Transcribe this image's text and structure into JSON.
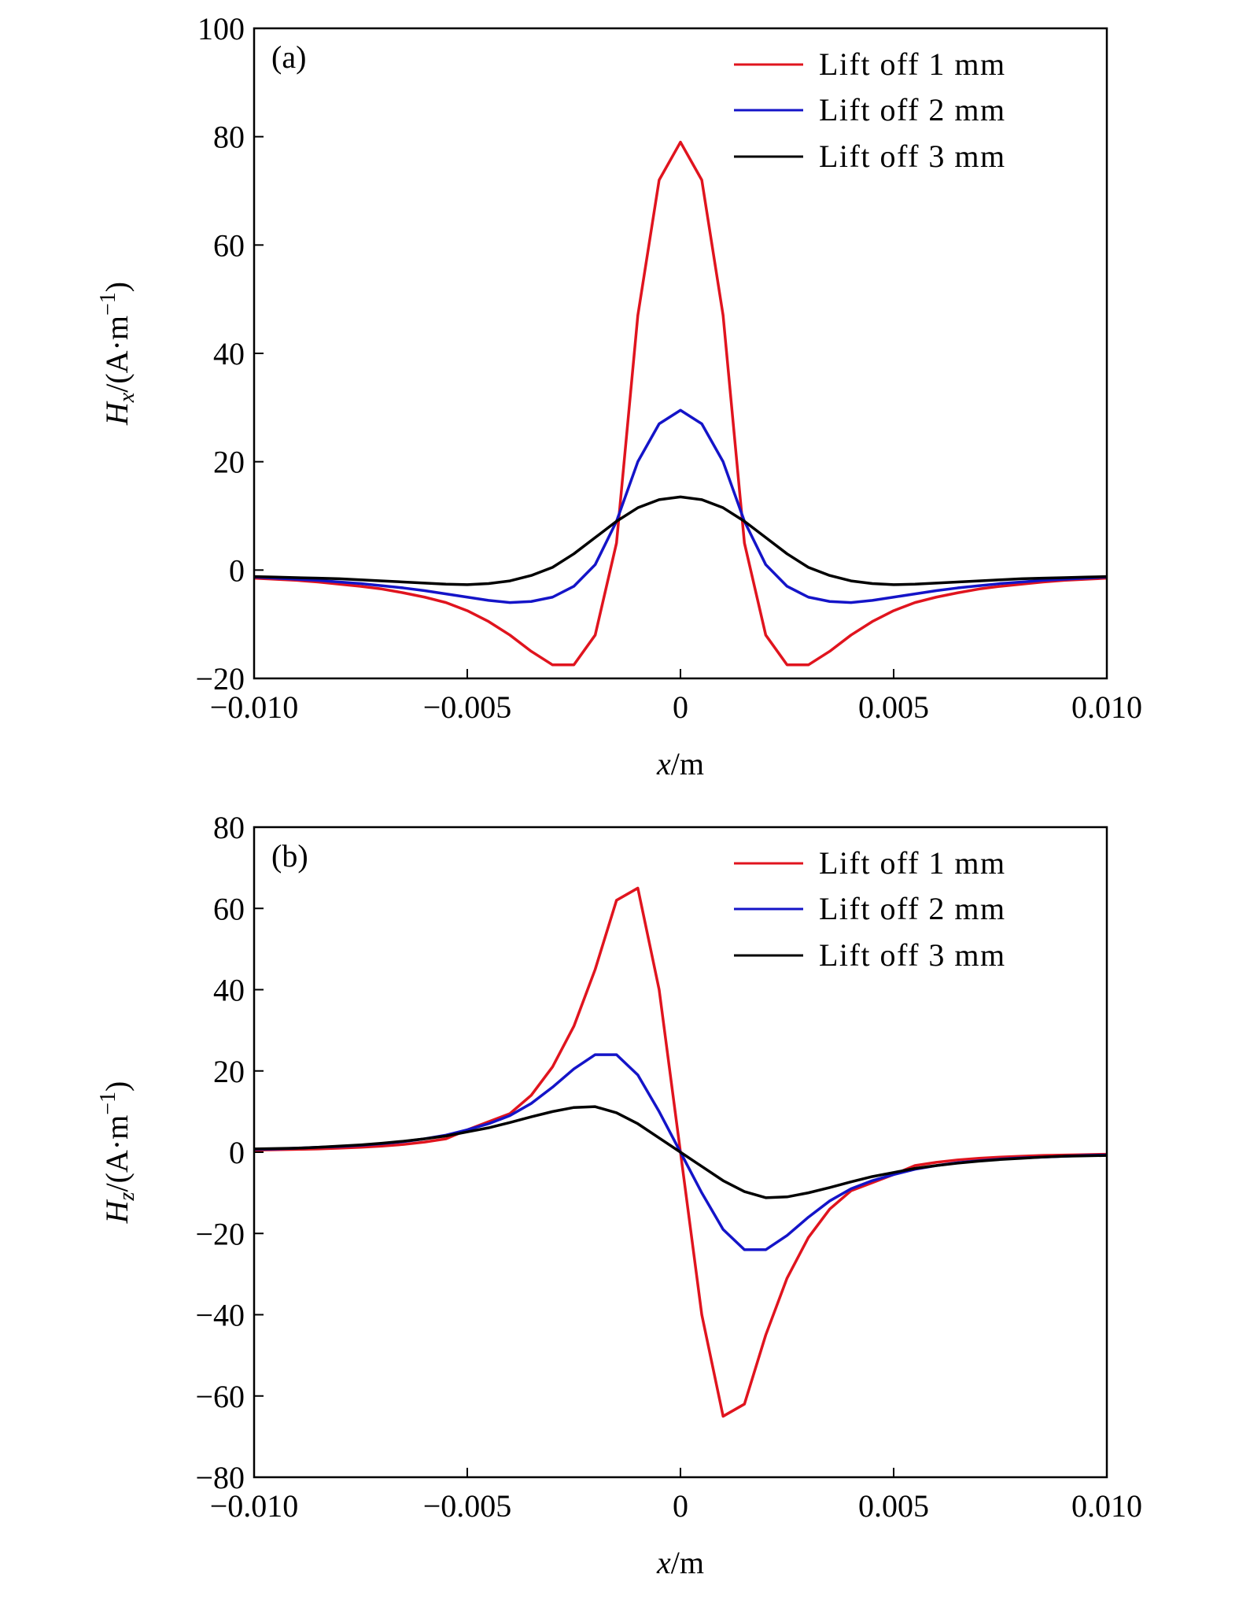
{
  "chart_data": [
    {
      "type": "line",
      "panel_label": "(a)",
      "x_label": "x/m",
      "y_label": "Hx/(A·m−1)",
      "x": [
        -0.01,
        -0.0095,
        -0.009,
        -0.0085,
        -0.008,
        -0.0075,
        -0.007,
        -0.0065,
        -0.006,
        -0.0055,
        -0.005,
        -0.0045,
        -0.004,
        -0.0035,
        -0.003,
        -0.0025,
        -0.002,
        -0.0015,
        -0.001,
        -0.0005,
        0,
        0.0005,
        0.001,
        0.0015,
        0.002,
        0.0025,
        0.003,
        0.0035,
        0.004,
        0.0045,
        0.005,
        0.0055,
        0.006,
        0.0065,
        0.007,
        0.0075,
        0.008,
        0.0085,
        0.009,
        0.0095,
        0.01
      ],
      "series": [
        {
          "name": "Lift off 1 mm",
          "color": "#e0141e",
          "values": [
            -1.5,
            -1.7,
            -1.9,
            -2.2,
            -2.6,
            -3,
            -3.5,
            -4.2,
            -5,
            -6,
            -7.5,
            -9.5,
            -12,
            -15,
            -17.5,
            -17.5,
            -12,
            5,
            47,
            72,
            79,
            72,
            47,
            5,
            -12,
            -17.5,
            -17.5,
            -15,
            -12,
            -9.5,
            -7.5,
            -6,
            -5,
            -4.2,
            -3.5,
            -3,
            -2.6,
            -2.2,
            -1.9,
            -1.7,
            -1.5
          ]
        },
        {
          "name": "Lift off 2 mm",
          "color": "#1414c8",
          "values": [
            -1.3,
            -1.5,
            -1.7,
            -1.9,
            -2.2,
            -2.5,
            -2.9,
            -3.3,
            -3.8,
            -4.4,
            -5,
            -5.6,
            -6,
            -5.8,
            -5,
            -3,
            1,
            9,
            20,
            27,
            29.5,
            27,
            20,
            9,
            1,
            -3,
            -5,
            -5.8,
            -6,
            -5.6,
            -5,
            -4.4,
            -3.8,
            -3.3,
            -2.9,
            -2.5,
            -2.2,
            -1.9,
            -1.7,
            -1.5,
            -1.3
          ]
        },
        {
          "name": "Lift off 3 mm",
          "color": "#000000",
          "values": [
            -1.2,
            -1.3,
            -1.4,
            -1.5,
            -1.6,
            -1.8,
            -2,
            -2.2,
            -2.4,
            -2.6,
            -2.7,
            -2.5,
            -2,
            -1,
            0.5,
            3,
            6,
            9,
            11.5,
            13,
            13.5,
            13,
            11.5,
            9,
            6,
            3,
            0.5,
            -1,
            -2,
            -2.5,
            -2.7,
            -2.6,
            -2.4,
            -2.2,
            -2,
            -1.8,
            -1.6,
            -1.5,
            -1.4,
            -1.3,
            -1.2
          ]
        }
      ],
      "xlim": [
        -0.01,
        0.01
      ],
      "xticks": [
        {
          "value": -0.01,
          "label": "−0.010"
        },
        {
          "value": -0.005,
          "label": "−0.005"
        },
        0,
        {
          "value": 0.005,
          "label": "0.005"
        },
        {
          "value": 0.01,
          "label": "0.010"
        }
      ],
      "ylim": [
        -20,
        100
      ],
      "yticks": [
        {
          "value": -20,
          "label": "−20"
        },
        0,
        20,
        40,
        60,
        80,
        100
      ],
      "legend": "upper right",
      "grid": false
    },
    {
      "type": "line",
      "panel_label": "(b)",
      "x_label": "x/m",
      "y_label": "Hz/(A·m−1)",
      "x": [
        -0.01,
        -0.0095,
        -0.009,
        -0.0085,
        -0.008,
        -0.0075,
        -0.007,
        -0.0065,
        -0.006,
        -0.0055,
        -0.005,
        -0.0045,
        -0.004,
        -0.0035,
        -0.003,
        -0.0025,
        -0.002,
        -0.0015,
        -0.001,
        -0.0005,
        0,
        0.0005,
        0.001,
        0.0015,
        0.002,
        0.0025,
        0.003,
        0.0035,
        0.004,
        0.0045,
        0.005,
        0.0055,
        0.006,
        0.0065,
        0.007,
        0.0075,
        0.008,
        0.0085,
        0.009,
        0.0095,
        0.01
      ],
      "series": [
        {
          "name": "Lift off 1 mm",
          "color": "#e0141e",
          "values": [
            0.5,
            0.6,
            0.7,
            0.8,
            1,
            1.2,
            1.5,
            1.9,
            2.5,
            3.3,
            5.5,
            7.5,
            9.5,
            14,
            21,
            31,
            45,
            62,
            65,
            40,
            0,
            -40,
            -65,
            -62,
            -45,
            -31,
            -21,
            -14,
            -9.5,
            -7.5,
            -5.5,
            -3.3,
            -2.5,
            -1.9,
            -1.5,
            -1.2,
            -1,
            -0.8,
            -0.7,
            -0.6,
            -0.5
          ]
        },
        {
          "name": "Lift off 2 mm",
          "color": "#1414c8",
          "values": [
            0.7,
            0.8,
            1,
            1.2,
            1.4,
            1.7,
            2.1,
            2.6,
            3.3,
            4.2,
            5.5,
            7,
            9,
            12,
            16,
            20.5,
            24,
            24,
            19,
            10,
            0,
            -10,
            -19,
            -24,
            -24,
            -20.5,
            -16,
            -12,
            -9,
            -7,
            -5.5,
            -4.2,
            -3.3,
            -2.6,
            -2.1,
            -1.7,
            -1.4,
            -1.2,
            -1,
            -0.8,
            -0.7
          ]
        },
        {
          "name": "Lift off 3 mm",
          "color": "#000000",
          "values": [
            0.8,
            0.9,
            1,
            1.2,
            1.5,
            1.8,
            2.2,
            2.7,
            3.3,
            4,
            5,
            6,
            7.3,
            8.7,
            10,
            11,
            11.2,
            9.7,
            7,
            3.5,
            0,
            -3.5,
            -7,
            -9.7,
            -11.2,
            -11,
            -10,
            -8.7,
            -7.3,
            -6,
            -5,
            -4,
            -3.3,
            -2.7,
            -2.2,
            -1.8,
            -1.5,
            -1.2,
            -1,
            -0.9,
            -0.8
          ]
        }
      ],
      "xlim": [
        -0.01,
        0.01
      ],
      "xticks": [
        {
          "value": -0.01,
          "label": "−0.010"
        },
        {
          "value": -0.005,
          "label": "−0.005"
        },
        0,
        {
          "value": 0.005,
          "label": "0.005"
        },
        {
          "value": 0.01,
          "label": "0.010"
        }
      ],
      "ylim": [
        -80,
        80
      ],
      "yticks": [
        {
          "value": -80,
          "label": "−80"
        },
        {
          "value": -60,
          "label": "−60"
        },
        {
          "value": -40,
          "label": "−40"
        },
        {
          "value": -20,
          "label": "−20"
        },
        0,
        20,
        40,
        60,
        80
      ],
      "legend": "upper right",
      "grid": false
    }
  ]
}
